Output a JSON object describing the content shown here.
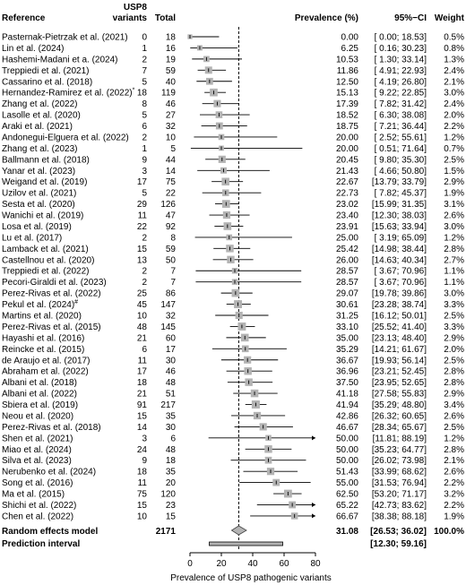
{
  "headers": {
    "reference": "Reference",
    "variants_line1": "USP8",
    "variants_line2": "variants",
    "total": "Total",
    "prevalence": "Prevalence (%)",
    "ci": "95%−CI",
    "weight": "Weight"
  },
  "pooled": {
    "label": "Random effects model",
    "total": "2171",
    "prevalence": "31.08",
    "ci": "[26.53; 36.02]",
    "weight": "100.0%",
    "estimate": 31.08,
    "low": 26.53,
    "high": 36.02
  },
  "prediction": {
    "label": "Prediction interval",
    "ci": "[12.30; 59.16]",
    "low": 12.3,
    "high": 59.16
  },
  "chart_data": {
    "type": "forest",
    "xlabel": "Prevalence of USP8 pathogenic variants",
    "xlim": [
      0,
      80
    ],
    "xticks": [
      0,
      20,
      40,
      60,
      80
    ],
    "reference_line": 31.08,
    "colors": {
      "box": "#b3b3b3",
      "diamond": "#b3b3b3",
      "prediction_bar": "#b3b3b3",
      "line": "#000000"
    },
    "studies": [
      {
        "ref": "Pasternak-Pietrzak et al. (2021)",
        "sup": "",
        "events": 0,
        "total": 18,
        "est": 0.0,
        "low": 0.0,
        "high": 18.53,
        "est_s": "0.00",
        "ci_s": "[ 0.00; 18.53]",
        "weight": "0.5%"
      },
      {
        "ref": "Lin et al. (2024)",
        "sup": "",
        "events": 1,
        "total": 16,
        "est": 6.25,
        "low": 0.16,
        "high": 30.23,
        "est_s": "6.25",
        "ci_s": "[ 0.16; 30.23]",
        "weight": "0.8%"
      },
      {
        "ref": "Hashemi-Madani et a. (2024)",
        "sup": "",
        "events": 2,
        "total": 19,
        "est": 10.53,
        "low": 1.3,
        "high": 33.14,
        "est_s": "10.53",
        "ci_s": "[ 1.30; 33.14]",
        "weight": "1.3%"
      },
      {
        "ref": "Treppiedi et al. (2021)",
        "sup": "",
        "events": 7,
        "total": 59,
        "est": 11.86,
        "low": 4.91,
        "high": 22.93,
        "est_s": "11.86",
        "ci_s": "[ 4.91; 22.93]",
        "weight": "2.4%"
      },
      {
        "ref": "Cassarino et al. (2018)",
        "sup": "",
        "events": 5,
        "total": 40,
        "est": 12.5,
        "low": 4.19,
        "high": 26.8,
        "est_s": "12.50",
        "ci_s": "[ 4.19; 26.80]",
        "weight": "2.1%"
      },
      {
        "ref": "Hernandez-Ramirez et al. (2022)",
        "sup": "*",
        "events": 18,
        "total": 119,
        "est": 15.13,
        "low": 9.22,
        "high": 22.85,
        "est_s": "15.13",
        "ci_s": "[ 9.22; 22.85]",
        "weight": "3.0%"
      },
      {
        "ref": "Zhang et al. (2022)",
        "sup": "",
        "events": 8,
        "total": 46,
        "est": 17.39,
        "low": 7.82,
        "high": 31.42,
        "est_s": "17.39",
        "ci_s": "[ 7.82; 31.42]",
        "weight": "2.4%"
      },
      {
        "ref": "Lasolle et al. (2020)",
        "sup": "",
        "events": 5,
        "total": 27,
        "est": 18.52,
        "low": 6.3,
        "high": 38.08,
        "est_s": "18.52",
        "ci_s": "[ 6.30; 38.08]",
        "weight": "2.0%"
      },
      {
        "ref": "Araki et al. (2021)",
        "sup": "",
        "events": 6,
        "total": 32,
        "est": 18.75,
        "low": 7.21,
        "high": 36.44,
        "est_s": "18.75",
        "ci_s": "[ 7.21; 36.44]",
        "weight": "2.2%"
      },
      {
        "ref": "Andonegui-Elguera et al. (2022)",
        "sup": "",
        "events": 2,
        "total": 10,
        "est": 20.0,
        "low": 2.52,
        "high": 55.61,
        "est_s": "20.00",
        "ci_s": "[ 2.52; 55.61]",
        "weight": "1.2%"
      },
      {
        "ref": "Zhang et al. (2023)",
        "sup": "",
        "events": 1,
        "total": 5,
        "est": 20.0,
        "low": 0.51,
        "high": 71.64,
        "est_s": "20.00",
        "ci_s": "[ 0.51; 71.64]",
        "weight": "0.7%"
      },
      {
        "ref": "Ballmann et al. (2018)",
        "sup": "",
        "events": 9,
        "total": 44,
        "est": 20.45,
        "low": 9.8,
        "high": 35.3,
        "est_s": "20.45",
        "ci_s": "[ 9.80; 35.30]",
        "weight": "2.5%"
      },
      {
        "ref": "Yanar et al. (2023)",
        "sup": "",
        "events": 3,
        "total": 14,
        "est": 21.43,
        "low": 4.66,
        "high": 50.8,
        "est_s": "21.43",
        "ci_s": "[ 4.66; 50.80]",
        "weight": "1.5%"
      },
      {
        "ref": "Weigand et al. (2019)",
        "sup": "",
        "events": 17,
        "total": 75,
        "est": 22.67,
        "low": 13.79,
        "high": 33.79,
        "est_s": "22.67",
        "ci_s": "[13.79; 33.79]",
        "weight": "2.9%"
      },
      {
        "ref": "Uzilov et al. (2021)",
        "sup": "",
        "events": 5,
        "total": 22,
        "est": 22.73,
        "low": 7.82,
        "high": 45.37,
        "est_s": "22.73",
        "ci_s": "[ 7.82; 45.37]",
        "weight": "1.9%"
      },
      {
        "ref": "Sesta et al. (2020)",
        "sup": "",
        "events": 29,
        "total": 126,
        "est": 23.02,
        "low": 15.99,
        "high": 31.35,
        "est_s": "23.02",
        "ci_s": "[15.99; 31.35]",
        "weight": "3.1%"
      },
      {
        "ref": "Wanichi et al. (2019)",
        "sup": "",
        "events": 11,
        "total": 47,
        "est": 23.4,
        "low": 12.3,
        "high": 38.03,
        "est_s": "23.40",
        "ci_s": "[12.30; 38.03]",
        "weight": "2.6%"
      },
      {
        "ref": "Losa et al. (2019)",
        "sup": "",
        "events": 22,
        "total": 92,
        "est": 23.91,
        "low": 15.63,
        "high": 33.94,
        "est_s": "23.91",
        "ci_s": "[15.63; 33.94]",
        "weight": "3.0%"
      },
      {
        "ref": "Lu et al. (2017)",
        "sup": "",
        "events": 2,
        "total": 8,
        "est": 25.0,
        "low": 3.19,
        "high": 65.09,
        "est_s": "25.00",
        "ci_s": "[ 3.19; 65.09]",
        "weight": "1.2%"
      },
      {
        "ref": "Lamback et al. (2021)",
        "sup": "",
        "events": 15,
        "total": 59,
        "est": 25.42,
        "low": 14.98,
        "high": 38.44,
        "est_s": "25.42",
        "ci_s": "[14.98; 38.44]",
        "weight": "2.8%"
      },
      {
        "ref": "Castellnou et al. (2020)",
        "sup": "",
        "events": 13,
        "total": 50,
        "est": 26.0,
        "low": 14.63,
        "high": 40.34,
        "est_s": "26.00",
        "ci_s": "[14.63; 40.34]",
        "weight": "2.7%"
      },
      {
        "ref": "Treppiedi et al. (2022)",
        "sup": "",
        "events": 2,
        "total": 7,
        "est": 28.57,
        "low": 3.67,
        "high": 70.96,
        "est_s": "28.57",
        "ci_s": "[ 3.67; 70.96]",
        "weight": "1.1%"
      },
      {
        "ref": "Pecori-Giraldi et al. (2023)",
        "sup": "",
        "events": 2,
        "total": 7,
        "est": 28.57,
        "low": 3.67,
        "high": 70.96,
        "est_s": "28.57",
        "ci_s": "[ 3.67; 70.96]",
        "weight": "1.1%"
      },
      {
        "ref": "Perez-Rivas et al. (2022)",
        "sup": "",
        "events": 25,
        "total": 86,
        "est": 29.07,
        "low": 19.78,
        "high": 39.86,
        "est_s": "29.07",
        "ci_s": "[19.78; 39.86]",
        "weight": "3.0%"
      },
      {
        "ref": "Pekul et al. (2024)",
        "sup": "#",
        "events": 45,
        "total": 147,
        "est": 30.61,
        "low": 23.28,
        "high": 38.74,
        "est_s": "30.61",
        "ci_s": "[23.28; 38.74]",
        "weight": "3.3%"
      },
      {
        "ref": "Martins et al. (2020)",
        "sup": "",
        "events": 10,
        "total": 32,
        "est": 31.25,
        "low": 16.12,
        "high": 50.01,
        "est_s": "31.25",
        "ci_s": "[16.12; 50.01]",
        "weight": "2.5%"
      },
      {
        "ref": "Perez-Rivas et al. (2015)",
        "sup": "",
        "events": 48,
        "total": 145,
        "est": 33.1,
        "low": 25.52,
        "high": 41.4,
        "est_s": "33.10",
        "ci_s": "[25.52; 41.40]",
        "weight": "3.3%"
      },
      {
        "ref": "Hayashi et al. (2016)",
        "sup": "",
        "events": 21,
        "total": 60,
        "est": 35.0,
        "low": 23.13,
        "high": 48.4,
        "est_s": "35.00",
        "ci_s": "[23.13; 48.40]",
        "weight": "2.9%"
      },
      {
        "ref": "Reincke et al. (2015)",
        "sup": "",
        "events": 6,
        "total": 17,
        "est": 35.29,
        "low": 14.21,
        "high": 61.67,
        "est_s": "35.29",
        "ci_s": "[14.21; 61.67]",
        "weight": "2.0%"
      },
      {
        "ref": "de Araujo et al. (2017)",
        "sup": "",
        "events": 11,
        "total": 30,
        "est": 36.67,
        "low": 19.93,
        "high": 56.14,
        "est_s": "36.67",
        "ci_s": "[19.93; 56.14]",
        "weight": "2.5%"
      },
      {
        "ref": "Abraham et al. (2022)",
        "sup": "",
        "events": 17,
        "total": 46,
        "est": 36.96,
        "low": 23.21,
        "high": 52.45,
        "est_s": "36.96",
        "ci_s": "[23.21; 52.45]",
        "weight": "2.8%"
      },
      {
        "ref": "Albani et al. (2018)",
        "sup": "",
        "events": 18,
        "total": 48,
        "est": 37.5,
        "low": 23.95,
        "high": 52.65,
        "est_s": "37.50",
        "ci_s": "[23.95; 52.65]",
        "weight": "2.8%"
      },
      {
        "ref": "Albani et al. (2022)",
        "sup": "",
        "events": 21,
        "total": 51,
        "est": 41.18,
        "low": 27.58,
        "high": 55.83,
        "est_s": "41.18",
        "ci_s": "[27.58; 55.83]",
        "weight": "2.9%"
      },
      {
        "ref": "Sbiera et al. (2019)",
        "sup": "",
        "events": 91,
        "total": 217,
        "est": 41.94,
        "low": 35.29,
        "high": 48.8,
        "est_s": "41.94",
        "ci_s": "[35.29; 48.80]",
        "weight": "3.4%"
      },
      {
        "ref": "Neou et al. (2020)",
        "sup": "",
        "events": 15,
        "total": 35,
        "est": 42.86,
        "low": 26.32,
        "high": 60.65,
        "est_s": "42.86",
        "ci_s": "[26.32; 60.65]",
        "weight": "2.6%"
      },
      {
        "ref": "Perez-Rivas et al. (2018)",
        "sup": "",
        "events": 14,
        "total": 30,
        "est": 46.67,
        "low": 28.34,
        "high": 65.67,
        "est_s": "46.67",
        "ci_s": "[28.34; 65.67]",
        "weight": "2.5%"
      },
      {
        "ref": "Shen et al. (2021)",
        "sup": "",
        "events": 3,
        "total": 6,
        "est": 50.0,
        "low": 11.81,
        "high": 88.19,
        "est_s": "50.00",
        "ci_s": "[11.81; 88.19]",
        "weight": "1.2%"
      },
      {
        "ref": "Miao et al. (2024)",
        "sup": "",
        "events": 24,
        "total": 48,
        "est": 50.0,
        "low": 35.23,
        "high": 64.77,
        "est_s": "50.00",
        "ci_s": "[35.23; 64.77]",
        "weight": "2.8%"
      },
      {
        "ref": "Silva et al. (2023)",
        "sup": "",
        "events": 9,
        "total": 18,
        "est": 50.0,
        "low": 26.02,
        "high": 73.98,
        "est_s": "50.00",
        "ci_s": "[26.02; 73.98]",
        "weight": "2.1%"
      },
      {
        "ref": "Nerubenko et al. (2024)",
        "sup": "",
        "events": 18,
        "total": 35,
        "est": 51.43,
        "low": 33.99,
        "high": 68.62,
        "est_s": "51.43",
        "ci_s": "[33.99; 68.62]",
        "weight": "2.6%"
      },
      {
        "ref": "Song et al. (2016)",
        "sup": "",
        "events": 11,
        "total": 20,
        "est": 55.0,
        "low": 31.53,
        "high": 76.94,
        "est_s": "55.00",
        "ci_s": "[31.53; 76.94]",
        "weight": "2.2%"
      },
      {
        "ref": "Ma et al. (2015)",
        "sup": "",
        "events": 75,
        "total": 120,
        "est": 62.5,
        "low": 53.2,
        "high": 71.17,
        "est_s": "62.50",
        "ci_s": "[53.20; 71.17]",
        "weight": "3.2%"
      },
      {
        "ref": "Shichi et al. (2022)",
        "sup": "",
        "events": 15,
        "total": 23,
        "est": 65.22,
        "low": 42.73,
        "high": 83.62,
        "est_s": "65.22",
        "ci_s": "[42.73; 83.62]",
        "weight": "2.2%"
      },
      {
        "ref": "Chen et al. (2022)",
        "sup": "",
        "events": 10,
        "total": 15,
        "est": 66.67,
        "low": 38.38,
        "high": 88.18,
        "est_s": "66.67",
        "ci_s": "[38.38; 88.18]",
        "weight": "1.9%"
      }
    ]
  }
}
